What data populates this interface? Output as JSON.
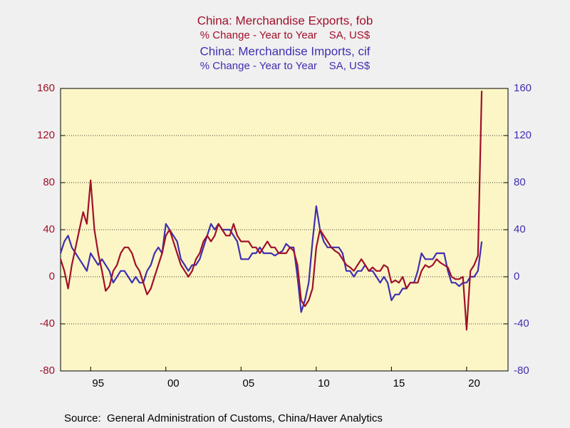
{
  "chart_data": {
    "type": "line",
    "series": [
      {
        "name": "China: Merchandise Exports, fob",
        "subtitle": "% Change - Year to Year    SA, US$",
        "color": "#a0102a",
        "axis": "y",
        "values": [
          15,
          5,
          -10,
          10,
          25,
          40,
          55,
          45,
          82,
          40,
          20,
          5,
          -12,
          -8,
          5,
          10,
          20,
          25,
          25,
          20,
          10,
          5,
          -5,
          -15,
          -10,
          0,
          10,
          20,
          35,
          40,
          30,
          20,
          10,
          5,
          0,
          5,
          15,
          20,
          30,
          35,
          30,
          35,
          45,
          40,
          35,
          35,
          45,
          35,
          30,
          30,
          30,
          25,
          25,
          20,
          25,
          30,
          25,
          25,
          20,
          20,
          20,
          25,
          22,
          10,
          -20,
          -25,
          -20,
          -10,
          25,
          40,
          35,
          30,
          25,
          22,
          20,
          15,
          10,
          8,
          5,
          10,
          15,
          10,
          5,
          8,
          5,
          5,
          10,
          8,
          -5,
          -3,
          -5,
          0,
          -10,
          -5,
          -5,
          -5,
          5,
          10,
          8,
          10,
          15,
          12,
          10,
          8,
          0,
          -2,
          -2,
          0,
          -45,
          5,
          10,
          18,
          158
        ]
      },
      {
        "name": "China: Merchandise Imports, cif",
        "subtitle": "% Change - Year to Year    SA, US$",
        "color": "#3f2fb0",
        "axis": "y2",
        "values": [
          20,
          30,
          35,
          25,
          20,
          15,
          10,
          5,
          20,
          15,
          10,
          15,
          10,
          5,
          -5,
          0,
          5,
          5,
          0,
          -5,
          0,
          -5,
          -5,
          5,
          10,
          20,
          25,
          20,
          45,
          40,
          35,
          30,
          15,
          10,
          5,
          10,
          10,
          15,
          25,
          35,
          45,
          40,
          45,
          40,
          40,
          40,
          35,
          30,
          15,
          15,
          15,
          20,
          20,
          25,
          20,
          20,
          20,
          18,
          20,
          22,
          28,
          25,
          25,
          0,
          -30,
          -20,
          -5,
          30,
          60,
          40,
          30,
          25,
          25,
          25,
          25,
          20,
          5,
          5,
          0,
          5,
          5,
          10,
          5,
          5,
          0,
          -5,
          0,
          -5,
          -20,
          -15,
          -15,
          -10,
          -10,
          -5,
          -5,
          5,
          20,
          15,
          15,
          15,
          20,
          20,
          20,
          5,
          -5,
          -5,
          -8,
          -5,
          -5,
          0,
          0,
          5,
          30
        ]
      }
    ],
    "x": [
      1993,
      1993.25,
      1993.5,
      1993.75,
      1994,
      1994.25,
      1994.5,
      1994.75,
      1995,
      1995.25,
      1995.5,
      1995.75,
      1996,
      1996.25,
      1996.5,
      1996.75,
      1997,
      1997.25,
      1997.5,
      1997.75,
      1998,
      1998.25,
      1998.5,
      1998.75,
      1999,
      1999.25,
      1999.5,
      1999.75,
      2000,
      2000.25,
      2000.5,
      2000.75,
      2001,
      2001.25,
      2001.5,
      2001.75,
      2002,
      2002.25,
      2002.5,
      2002.75,
      2003,
      2003.25,
      2003.5,
      2003.75,
      2004,
      2004.25,
      2004.5,
      2004.75,
      2005,
      2005.25,
      2005.5,
      2005.75,
      2006,
      2006.25,
      2006.5,
      2006.75,
      2007,
      2007.25,
      2007.5,
      2007.75,
      2008,
      2008.25,
      2008.5,
      2008.75,
      2009,
      2009.25,
      2009.5,
      2009.75,
      2010,
      2010.25,
      2010.5,
      2010.75,
      2011,
      2011.25,
      2011.5,
      2011.75,
      2012,
      2012.25,
      2012.5,
      2012.75,
      2013,
      2013.25,
      2013.5,
      2013.75,
      2014,
      2014.25,
      2014.5,
      2014.75,
      2015,
      2015.25,
      2015.5,
      2015.75,
      2016,
      2016.25,
      2016.5,
      2016.75,
      2017,
      2017.25,
      2017.5,
      2017.75,
      2018,
      2018.25,
      2018.5,
      2018.75,
      2019,
      2019.25,
      2019.5,
      2019.75,
      2020,
      2020.25,
      2020.5,
      2020.75,
      2021
    ],
    "xlim": [
      1993,
      2022.75
    ],
    "xticks": [
      {
        "value": 1995,
        "label": "95"
      },
      {
        "value": 2000,
        "label": "00"
      },
      {
        "value": 2005,
        "label": "05"
      },
      {
        "value": 2010,
        "label": "10"
      },
      {
        "value": 2015,
        "label": "15"
      },
      {
        "value": 2020,
        "label": "20"
      }
    ],
    "ylim": [
      -80,
      160
    ],
    "yticks": [
      -80,
      -40,
      0,
      40,
      80,
      120,
      160
    ],
    "y2lim": [
      -80,
      160
    ],
    "y2ticks": [
      -80,
      -40,
      0,
      40,
      80,
      120,
      160
    ],
    "grid": true,
    "source": "Source:  General Administration of Customs, China/Haver Analytics"
  }
}
